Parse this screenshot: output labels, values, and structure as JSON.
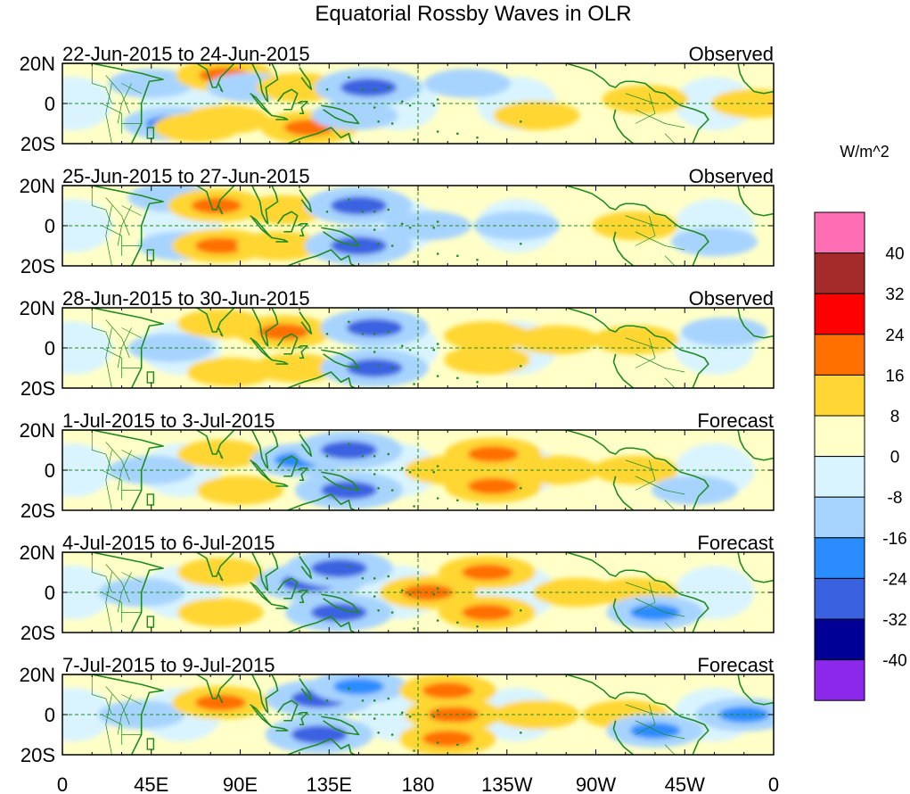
{
  "title": "Equatorial Rossby Waves in OLR",
  "units": "W/m^2",
  "lat_labels": [
    "20N",
    "0",
    "20S"
  ],
  "lon_labels": [
    "0",
    "45E",
    "90E",
    "135E",
    "180",
    "135W",
    "90W",
    "45W",
    "0"
  ],
  "panels": [
    {
      "dates": "22-Jun-2015 to 24-Jun-2015",
      "kind": "Observed"
    },
    {
      "dates": "25-Jun-2015 to 27-Jun-2015",
      "kind": "Observed"
    },
    {
      "dates": "28-Jun-2015 to 30-Jun-2015",
      "kind": "Observed"
    },
    {
      "dates": "1-Jul-2015 to 3-Jul-2015",
      "kind": "Forecast"
    },
    {
      "dates": "4-Jul-2015 to 6-Jul-2015",
      "kind": "Forecast"
    },
    {
      "dates": "7-Jul-2015 to 9-Jul-2015",
      "kind": "Forecast"
    }
  ],
  "colorbar": {
    "labels": [
      "40",
      "32",
      "24",
      "16",
      "8",
      "0",
      "-8",
      "-16",
      "-24",
      "-32",
      "-40"
    ],
    "colors": [
      "#ff6eb4",
      "#a52a2a",
      "#ff0000",
      "#ff7000",
      "#ffd633",
      "#ffffc8",
      "#d9f4ff",
      "#a7d4ff",
      "#2b8cff",
      "#3a62e0",
      "#000096",
      "#8c28eb"
    ]
  },
  "colors": {
    "coast": "#1f8a1f",
    "pos_light": "#ffffc8",
    "pos_mid": "#ffd633",
    "pos_strong": "#ff7000",
    "neg_light": "#d9f4ff",
    "neg_mid": "#a7d4ff",
    "neg_strong": "#2b8cff",
    "neg_deep": "#3a62e0"
  },
  "anomalies": [
    [
      {
        "lon": 55,
        "lat": -10,
        "value": -16
      },
      {
        "lon": 45,
        "lat": 10,
        "value": -8
      },
      {
        "lon": 68,
        "lat": -12,
        "value": 8
      },
      {
        "lon": 82,
        "lat": 14,
        "value": 16
      },
      {
        "lon": 83,
        "lat": -8,
        "value": 8
      },
      {
        "lon": 95,
        "lat": 8,
        "value": -8
      },
      {
        "lon": 125,
        "lat": -12,
        "value": 16
      },
      {
        "lon": 120,
        "lat": 8,
        "value": 8
      },
      {
        "lon": 155,
        "lat": 8,
        "value": -24
      },
      {
        "lon": 148,
        "lat": -6,
        "value": -8
      },
      {
        "lon": 205,
        "lat": 10,
        "value": -8
      },
      {
        "lon": 240,
        "lat": -6,
        "value": 8
      },
      {
        "lon": 295,
        "lat": 2,
        "value": 8
      },
      {
        "lon": 350,
        "lat": 0,
        "value": 8
      }
    ],
    [
      {
        "lon": 55,
        "lat": 14,
        "value": -8
      },
      {
        "lon": 60,
        "lat": -10,
        "value": -8
      },
      {
        "lon": 78,
        "lat": 10,
        "value": 16
      },
      {
        "lon": 80,
        "lat": -10,
        "value": 16
      },
      {
        "lon": 110,
        "lat": -10,
        "value": 8
      },
      {
        "lon": 112,
        "lat": 8,
        "value": 8
      },
      {
        "lon": 150,
        "lat": 10,
        "value": -24
      },
      {
        "lon": 150,
        "lat": -10,
        "value": -24
      },
      {
        "lon": 185,
        "lat": 0,
        "value": -8
      },
      {
        "lon": 230,
        "lat": 0,
        "value": -8
      },
      {
        "lon": 290,
        "lat": 0,
        "value": 8
      },
      {
        "lon": 330,
        "lat": -8,
        "value": -8
      }
    ],
    [
      {
        "lon": 55,
        "lat": 0,
        "value": -8
      },
      {
        "lon": 80,
        "lat": 12,
        "value": 8
      },
      {
        "lon": 85,
        "lat": -12,
        "value": 8
      },
      {
        "lon": 112,
        "lat": 8,
        "value": 16
      },
      {
        "lon": 118,
        "lat": -10,
        "value": 8
      },
      {
        "lon": 158,
        "lat": 10,
        "value": -24
      },
      {
        "lon": 158,
        "lat": -10,
        "value": -24
      },
      {
        "lon": 215,
        "lat": 6,
        "value": 8
      },
      {
        "lon": 215,
        "lat": -6,
        "value": 8
      },
      {
        "lon": 250,
        "lat": 4,
        "value": 8
      },
      {
        "lon": 290,
        "lat": 4,
        "value": 8
      },
      {
        "lon": 335,
        "lat": 8,
        "value": -8
      }
    ],
    [
      {
        "lon": 45,
        "lat": 0,
        "value": -8
      },
      {
        "lon": 80,
        "lat": 8,
        "value": 8
      },
      {
        "lon": 90,
        "lat": -10,
        "value": 8
      },
      {
        "lon": 120,
        "lat": 5,
        "value": -16
      },
      {
        "lon": 145,
        "lat": 10,
        "value": -24
      },
      {
        "lon": 145,
        "lat": -10,
        "value": -24
      },
      {
        "lon": 195,
        "lat": 0,
        "value": 8
      },
      {
        "lon": 218,
        "lat": 8,
        "value": 16
      },
      {
        "lon": 218,
        "lat": -8,
        "value": 16
      },
      {
        "lon": 250,
        "lat": 0,
        "value": 8
      },
      {
        "lon": 290,
        "lat": 0,
        "value": 8
      },
      {
        "lon": 320,
        "lat": -10,
        "value": -8
      }
    ],
    [
      {
        "lon": 40,
        "lat": 0,
        "value": -8
      },
      {
        "lon": 80,
        "lat": 10,
        "value": 8
      },
      {
        "lon": 80,
        "lat": -10,
        "value": 8
      },
      {
        "lon": 125,
        "lat": 5,
        "value": -24
      },
      {
        "lon": 140,
        "lat": 12,
        "value": -24
      },
      {
        "lon": 140,
        "lat": -10,
        "value": -24
      },
      {
        "lon": 185,
        "lat": 0,
        "value": 16
      },
      {
        "lon": 215,
        "lat": 10,
        "value": 16
      },
      {
        "lon": 215,
        "lat": -10,
        "value": 16
      },
      {
        "lon": 260,
        "lat": 0,
        "value": 8
      },
      {
        "lon": 290,
        "lat": 0,
        "value": 8
      },
      {
        "lon": 300,
        "lat": -10,
        "value": -16
      }
    ],
    [
      {
        "lon": 40,
        "lat": 0,
        "value": -8
      },
      {
        "lon": 80,
        "lat": 6,
        "value": 16
      },
      {
        "lon": 130,
        "lat": 8,
        "value": -24
      },
      {
        "lon": 130,
        "lat": -10,
        "value": -24
      },
      {
        "lon": 150,
        "lat": 14,
        "value": -16
      },
      {
        "lon": 198,
        "lat": 0,
        "value": 16
      },
      {
        "lon": 195,
        "lat": 12,
        "value": 16
      },
      {
        "lon": 195,
        "lat": -12,
        "value": 16
      },
      {
        "lon": 240,
        "lat": 0,
        "value": 8
      },
      {
        "lon": 285,
        "lat": 0,
        "value": 8
      },
      {
        "lon": 300,
        "lat": -8,
        "value": -16
      },
      {
        "lon": 345,
        "lat": 0,
        "value": -16
      }
    ]
  ]
}
